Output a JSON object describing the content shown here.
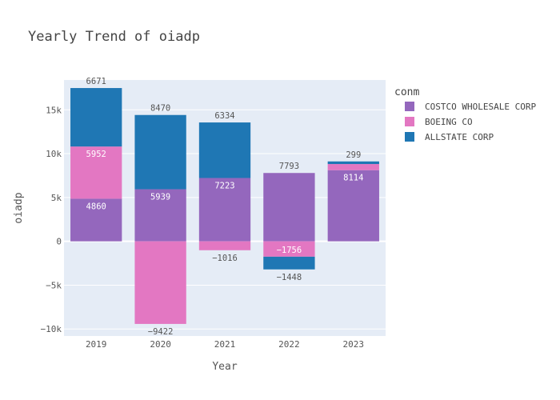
{
  "chart_data": {
    "type": "bar",
    "stacked": true,
    "title": "Yearly Trend of oiadp",
    "xlabel": "Year",
    "ylabel": "oiadp",
    "categories": [
      "2019",
      "2020",
      "2021",
      "2022",
      "2023"
    ],
    "ylim": [
      -10800,
      18400
    ],
    "yticks": [
      -10000,
      -5000,
      0,
      5000,
      10000,
      15000
    ],
    "ytick_labels": [
      "−10k",
      "−5k",
      "0",
      "5k",
      "10k",
      "15k"
    ],
    "legend": {
      "title": "conm",
      "placement": "top-right"
    },
    "grid": true,
    "plot_bg": "#e5ecf6",
    "series": [
      {
        "name": "COSTCO WHOLESALE CORP",
        "color": "#9467bd",
        "values": [
          4860,
          5939,
          7223,
          7793,
          8114
        ],
        "labels": [
          "4860",
          "5939",
          "7223",
          "7793",
          "8114"
        ],
        "label_pos": [
          "inside",
          "inside",
          "inside",
          "outside",
          "inside"
        ]
      },
      {
        "name": "BOEING CO",
        "color": "#e377c2",
        "values": [
          5952,
          -9422,
          -1016,
          -1756,
          700
        ],
        "labels": [
          "5952",
          "−9422",
          "−1016",
          "−1756",
          ""
        ],
        "label_pos": [
          "inside",
          "outside",
          "outside",
          "inside",
          "none"
        ]
      },
      {
        "name": "ALLSTATE CORP",
        "color": "#1f77b4",
        "values": [
          6671,
          8470,
          6334,
          -1448,
          299
        ],
        "labels": [
          "6671",
          "8470",
          "6334",
          "−1448",
          "299"
        ],
        "label_pos": [
          "outside",
          "outside",
          "outside",
          "outside",
          "outside"
        ]
      }
    ]
  }
}
